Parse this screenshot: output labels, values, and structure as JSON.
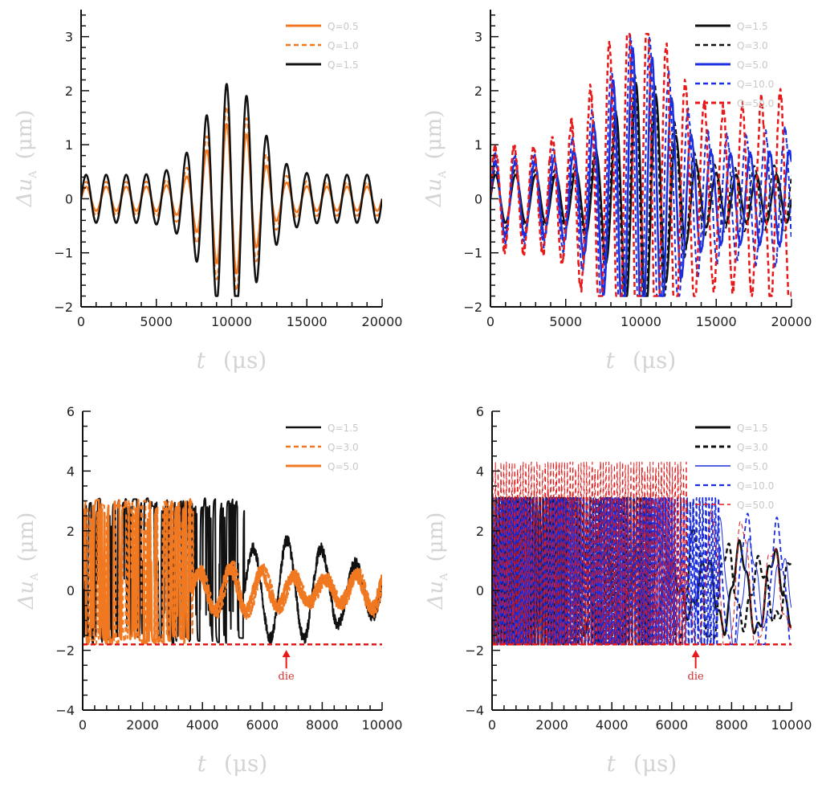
{
  "chart_data": [
    {
      "type": "line",
      "id": "tl",
      "xlabel_var": "t",
      "xlabel_unit": "(μs)",
      "ylabel_var": "Δu",
      "ylabel_sub": "A",
      "ylabel_unit": "(μm)",
      "xlim": [
        0,
        20000
      ],
      "ylim": [
        -2,
        3.5
      ],
      "xticks": [
        0,
        5000,
        10000,
        15000,
        20000
      ],
      "xtick_labels": [
        "0",
        "5000",
        "10000",
        "15000",
        "20000"
      ],
      "yticks": [
        -2,
        -1,
        0,
        1,
        2,
        3
      ],
      "ytick_labels": [
        "−2",
        "−1",
        "0",
        "1",
        "2",
        "3"
      ],
      "legend_position": "top-right",
      "series": [
        {
          "name": "Q=0.5",
          "color": "#f07820",
          "dash": "solid",
          "width": 2.5,
          "kind": "pulse",
          "params": {
            "amp": 3.3,
            "omega": 0.00125,
            "base": 0.15,
            "grow": 0.8,
            "center": 10000,
            "sigma": 2200,
            "clip": [
              -1.8,
              3.05
            ],
            "growth": 0,
            "noise": 0
          }
        },
        {
          "name": "Q=1.0",
          "color": "#f07820",
          "dash": "6,4",
          "width": 2,
          "kind": "pulse",
          "params": {
            "amp": 3.5,
            "omega": 0.00125,
            "base": 0.2,
            "grow": 0.9,
            "center": 10000,
            "sigma": 2300,
            "clip": [
              -1.8,
              3.05
            ],
            "growth": 0,
            "noise": 0
          }
        },
        {
          "name": "Q=1.5",
          "color": "#111111",
          "dash": "solid",
          "width": 2.5,
          "kind": "pulse",
          "params": {
            "amp": 3.8,
            "omega": 0.00125,
            "base": 0.26,
            "grow": 1.0,
            "center": 10000,
            "sigma": 2500,
            "clip": [
              -1.8,
              3.05
            ],
            "growth": 0,
            "noise": 0
          }
        }
      ]
    },
    {
      "type": "line",
      "id": "tr",
      "xlabel_var": "t",
      "xlabel_unit": "(μs)",
      "ylabel_var": "Δu",
      "ylabel_sub": "A",
      "ylabel_unit": "(μm)",
      "xlim": [
        0,
        20000
      ],
      "ylim": [
        -2,
        3.5
      ],
      "xticks": [
        0,
        5000,
        10000,
        15000,
        20000
      ],
      "xtick_labels": [
        "0",
        "5000",
        "10000",
        "15000",
        "20000"
      ],
      "yticks": [
        -2,
        -1,
        0,
        1,
        2,
        3
      ],
      "ytick_labels": [
        "−2",
        "−1",
        "0",
        "1",
        "2",
        "3"
      ],
      "legend_position": "top-right",
      "series": [
        {
          "name": "Q=1.5",
          "color": "#111111",
          "dash": "solid",
          "width": 2.5,
          "kind": "pulse",
          "params": {
            "amp": 3.8,
            "omega": 0.00125,
            "base": 0.26,
            "grow": 1.0,
            "center": 10000,
            "sigma": 2500,
            "clip": [
              -1.8,
              3.05
            ],
            "growth": 0,
            "noise": 0
          }
        },
        {
          "name": "Q=3.0",
          "color": "#111111",
          "dash": "6,4",
          "width": 2,
          "kind": "pulse",
          "params": {
            "amp": 4.0,
            "omega": 0.00126,
            "base": 0.3,
            "grow": 1.0,
            "center": 10000,
            "sigma": 2600,
            "clip": [
              -1.8,
              3.05
            ],
            "growth": 0.05,
            "noise": 0
          }
        },
        {
          "name": "Q=5.0",
          "color": "#1a2ee0",
          "dash": "solid",
          "width": 2.5,
          "kind": "pulse",
          "params": {
            "amp": 4.3,
            "omega": 0.00128,
            "base": 0.35,
            "grow": 1.1,
            "center": 9800,
            "sigma": 2800,
            "clip": [
              -1.8,
              3.05
            ],
            "growth": 0.1,
            "noise": 0.1
          }
        },
        {
          "name": "Q=10.0",
          "color": "#1a2ee0",
          "dash": "6,4",
          "width": 2,
          "kind": "pulse",
          "params": {
            "amp": 4.5,
            "omega": 0.0013,
            "base": 0.4,
            "grow": 1.1,
            "center": 9800,
            "sigma": 3000,
            "clip": [
              -1.8,
              3.05
            ],
            "growth": 0.25,
            "noise": 0.15
          }
        },
        {
          "name": "Q=50.0",
          "color": "#e81818",
          "dash": "6,4",
          "width": 2.5,
          "kind": "pulse",
          "params": {
            "amp": 4.7,
            "omega": 0.00132,
            "base": 0.45,
            "grow": 1.2,
            "center": 9600,
            "sigma": 3200,
            "clip": [
              -1.8,
              3.05
            ],
            "growth": 0.5,
            "noise": 0.2
          }
        }
      ]
    },
    {
      "type": "line",
      "id": "bl",
      "xlabel_var": "t",
      "xlabel_unit": "(μs)",
      "ylabel_var": "Δu",
      "ylabel_sub": "A",
      "ylabel_unit": "(μm)",
      "xlim": [
        0,
        10000
      ],
      "ylim": [
        -4,
        6
      ],
      "xticks": [
        0,
        2000,
        4000,
        6000,
        8000,
        10000
      ],
      "xtick_labels": [
        "0",
        "2000",
        "4000",
        "6000",
        "8000",
        "10000"
      ],
      "yticks": [
        -4,
        -2,
        0,
        2,
        4,
        6
      ],
      "ytick_labels": [
        "−4",
        "−2",
        "0",
        "2",
        "4",
        "6"
      ],
      "legend_position": "top-right",
      "die_level": -1.8,
      "annotation": {
        "text": "die",
        "x": 6800,
        "color": "#e81818"
      },
      "series": [
        {
          "name": "Q=1.5",
          "color": "#111111",
          "dash": "solid",
          "width": 2,
          "kind": "chaos",
          "params": {
            "seed": 7,
            "calm": 5400,
            "amp": 1.4,
            "omega": 0.0055,
            "chaosRate": 0.018,
            "clip": [
              -1.8,
              3.1
            ]
          }
        },
        {
          "name": "Q=3.0",
          "color": "#f07820",
          "dash": "6,4",
          "width": 2,
          "kind": "chaos",
          "params": {
            "seed": 13,
            "calm": 3700,
            "amp": 0.7,
            "omega": 0.006,
            "chaosRate": 0.02,
            "clip": [
              -1.8,
              3.1
            ]
          }
        },
        {
          "name": "Q=5.0",
          "color": "#f07820",
          "dash": "solid",
          "width": 2.5,
          "kind": "chaos",
          "params": {
            "seed": 21,
            "calm": 3600,
            "amp": 0.6,
            "omega": 0.006,
            "chaosRate": 0.02,
            "clip": [
              -1.8,
              3.1
            ]
          }
        },
        {
          "name": "die-level",
          "color": "#e81818",
          "dash": "6,4",
          "width": 2.5,
          "kind": "hline",
          "params": {
            "level": -1.8
          },
          "legend": false
        }
      ]
    },
    {
      "type": "line",
      "id": "br",
      "xlabel_var": "t",
      "xlabel_unit": "(μs)",
      "ylabel_var": "Δu",
      "ylabel_sub": "A",
      "ylabel_unit": "(μm)",
      "xlim": [
        0,
        10000
      ],
      "ylim": [
        -4,
        6
      ],
      "xticks": [
        0,
        2000,
        4000,
        6000,
        8000,
        10000
      ],
      "xtick_labels": [
        "0",
        "2000",
        "4000",
        "6000",
        "8000",
        "10000"
      ],
      "yticks": [
        -4,
        -2,
        0,
        2,
        4,
        6
      ],
      "ytick_labels": [
        "−4",
        "−2",
        "0",
        "2",
        "4",
        "6"
      ],
      "legend_position": "top-right",
      "die_level": -1.8,
      "annotation": {
        "text": "die",
        "x": 6800,
        "color": "#e81818"
      },
      "series": [
        {
          "name": "Q=1.5",
          "color": "#111111",
          "dash": "solid",
          "width": 2.5,
          "kind": "dense",
          "params": {
            "seed": 3,
            "denseEnd": 2500,
            "amp": 1.3,
            "omega": 0.0055,
            "freq": 0.03,
            "clip": [
              -1.8,
              3.1
            ]
          }
        },
        {
          "name": "Q=3.0",
          "color": "#111111",
          "dash": "6,4",
          "width": 2.5,
          "kind": "dense",
          "params": {
            "seed": 5,
            "denseEnd": 5400,
            "amp": 1.8,
            "omega": 0.0058,
            "freq": 0.028,
            "clip": [
              -1.8,
              3.1
            ]
          }
        },
        {
          "name": "Q=5.0",
          "color": "#1a2ee0",
          "dash": "solid",
          "width": 1,
          "kind": "dense",
          "params": {
            "seed": 9,
            "denseEnd": 6100,
            "amp": 2.0,
            "omega": 0.006,
            "freq": 0.032,
            "clip": [
              -1.8,
              3.1
            ]
          }
        },
        {
          "name": "Q=10.0",
          "color": "#1a2ee0",
          "dash": "6,4",
          "width": 1.8,
          "kind": "dense",
          "params": {
            "seed": 11,
            "denseEnd": 7600,
            "amp": 2.2,
            "omega": 0.0061,
            "freq": 0.03,
            "clip": [
              -1.8,
              3.1
            ]
          }
        },
        {
          "name": "Q=50.0",
          "color": "#e81818",
          "dash": "6,4",
          "width": 1,
          "kind": "dense",
          "params": {
            "seed": 17,
            "denseEnd": 6500,
            "amp": 2.3,
            "omega": 0.0062,
            "freq": 0.034,
            "clip": [
              -1.8,
              4.3
            ]
          }
        },
        {
          "name": "die-level",
          "color": "#e81818",
          "dash": "6,4",
          "width": 2.5,
          "kind": "hline",
          "params": {
            "level": -1.8
          },
          "legend": false
        }
      ]
    }
  ]
}
